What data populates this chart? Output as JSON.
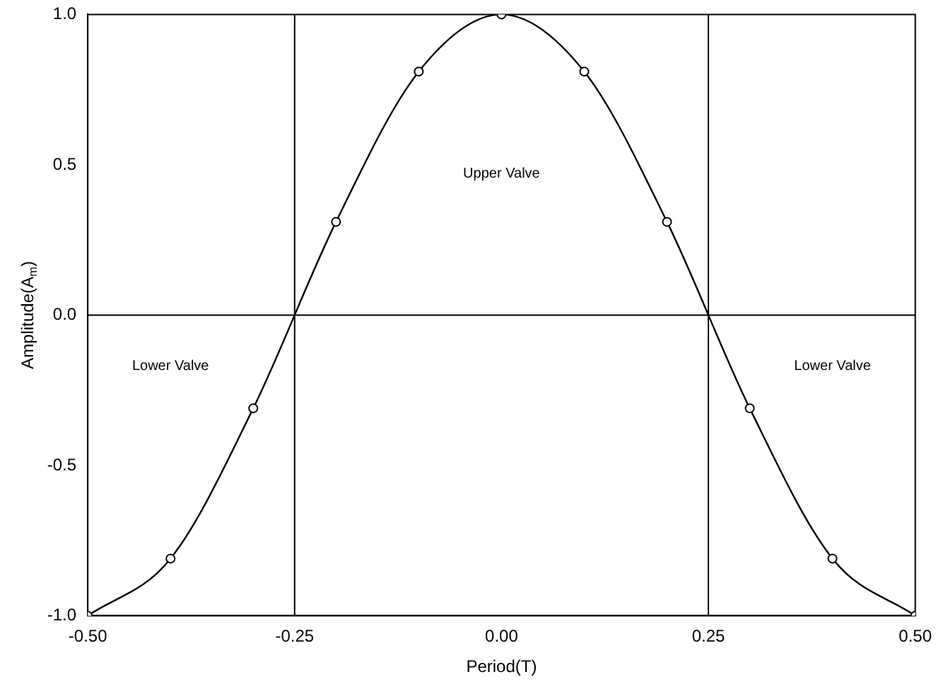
{
  "chart_data": {
    "type": "line",
    "xlabel": "Period(T)",
    "ylabel": "Amplitude(A$_{m}$)",
    "x": [
      -0.5,
      -0.4,
      -0.3,
      -0.2,
      -0.1,
      0,
      0.1,
      0.2,
      0.3,
      0.4,
      0.5
    ],
    "series": [
      {
        "color": "#000000",
        "values": [
          -1,
          -0.81,
          -0.31,
          0.31,
          0.81,
          1,
          0.81,
          0.31,
          -0.31,
          -0.81,
          -1
        ]
      }
    ],
    "xlim": [
      -0.5,
      0.5
    ],
    "xticks": [
      {
        "value": -0.5,
        "label": "-0.50"
      },
      {
        "value": -0.25,
        "label": "-0.25"
      },
      {
        "value": 0,
        "label": "0.00"
      },
      {
        "value": 0.25,
        "label": "0.25"
      },
      {
        "value": 0.5,
        "label": "0.50"
      }
    ],
    "ylim": [
      -1,
      1
    ],
    "yticks": [
      {
        "value": -1,
        "label": "-1.0"
      },
      {
        "value": -0.5,
        "label": "-0.5"
      },
      {
        "value": 0,
        "label": "0.0"
      },
      {
        "value": 0.5,
        "label": "0.5"
      },
      {
        "value": 1,
        "label": "1.0"
      }
    ],
    "ref_lines": [
      {
        "axis": "x",
        "value": -0.25,
        "color": "#000000"
      },
      {
        "axis": "x",
        "value": 0.25,
        "color": "#000000"
      },
      {
        "axis": "y",
        "value": 0,
        "color": "#000000"
      }
    ],
    "annotations": [
      "Upper Valve",
      "Lower Valve",
      "Lower Valve"
    ],
    "marker": "circle",
    "line_style": "solid",
    "grid": false,
    "legend": false
  }
}
